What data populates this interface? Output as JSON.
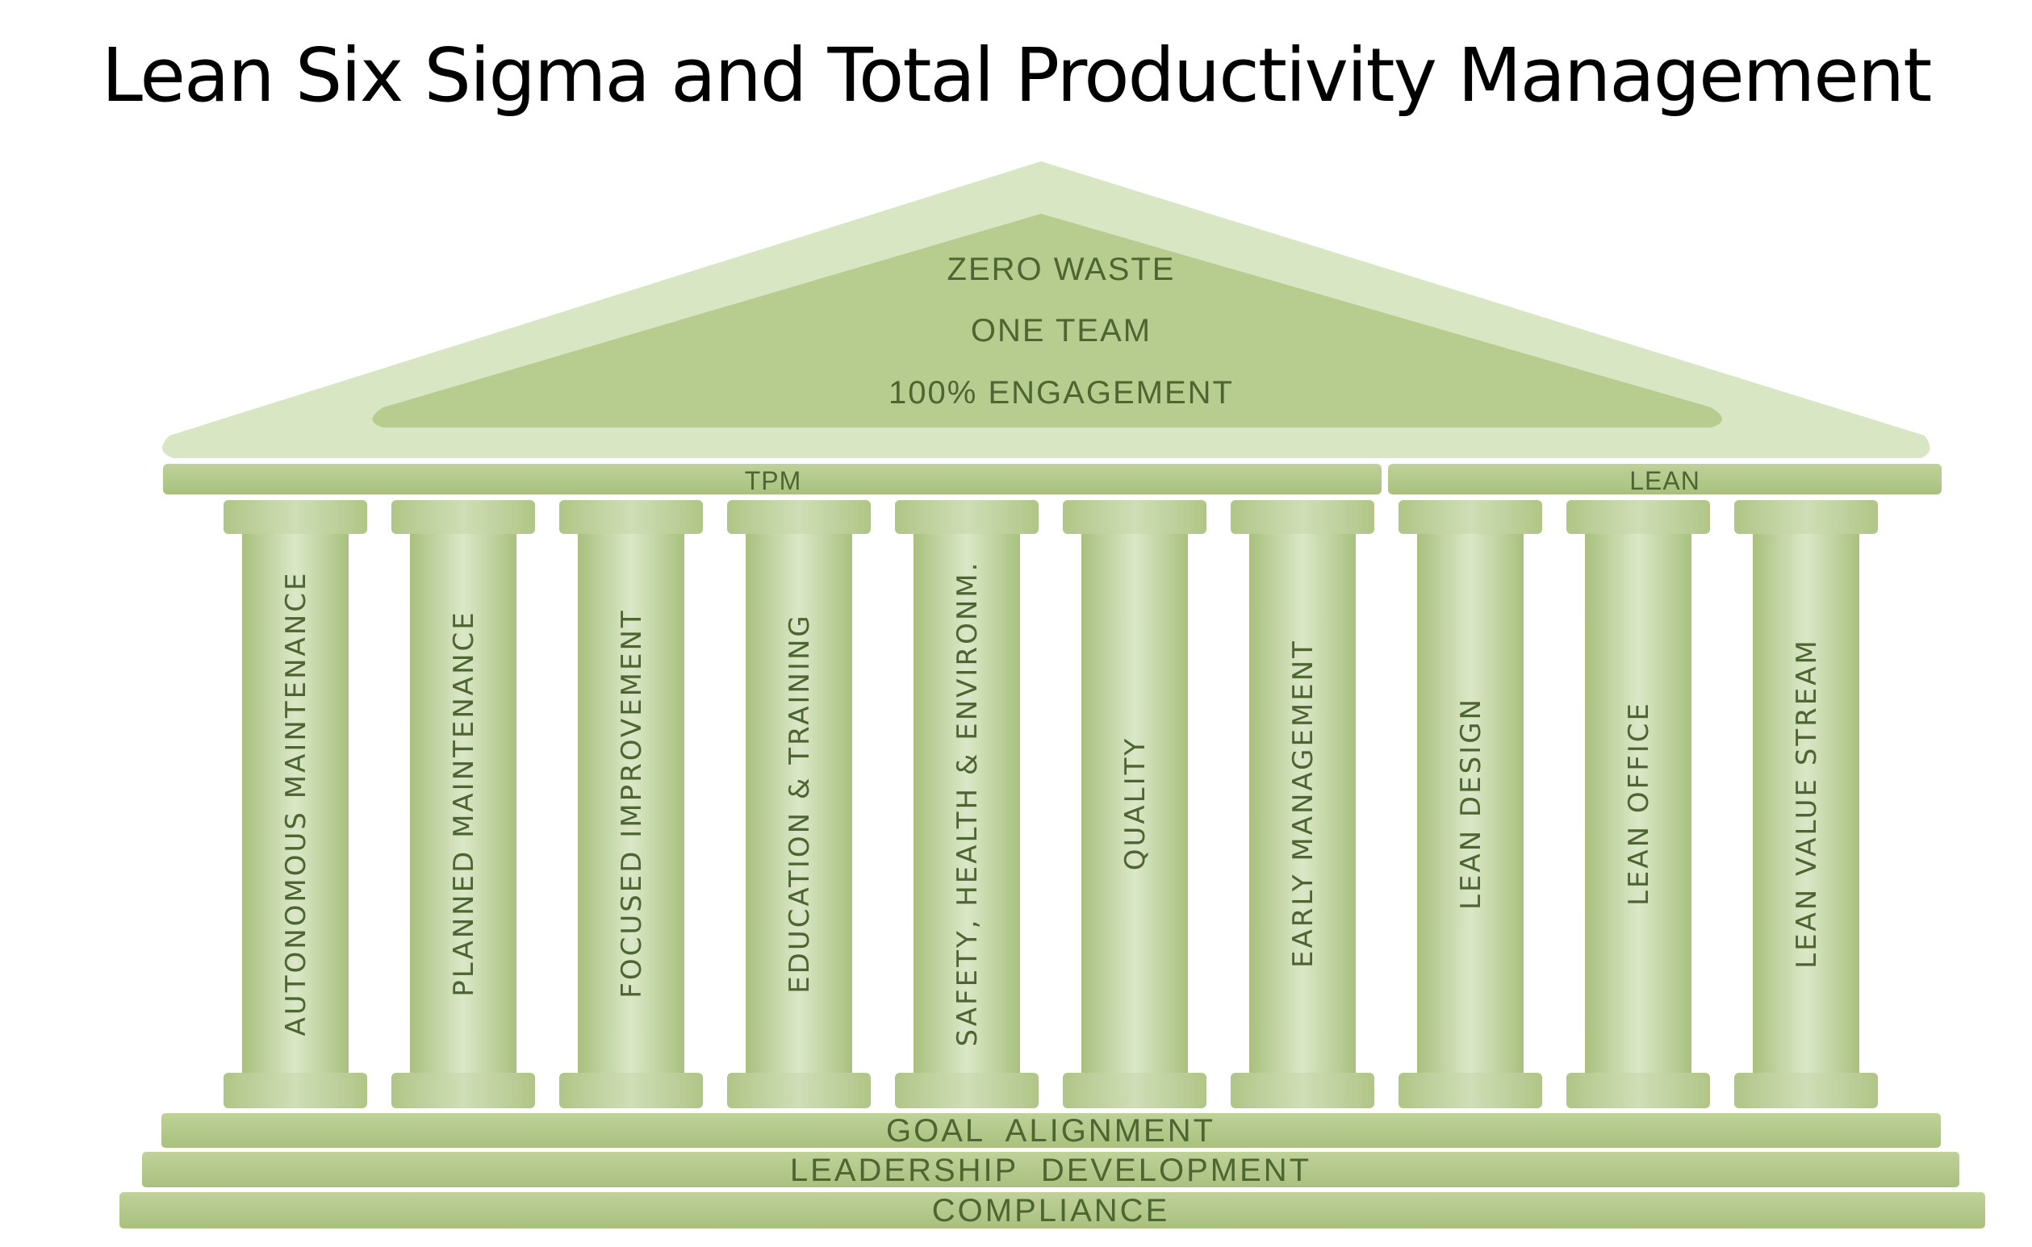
{
  "title": "Lean Six Sigma and Total Productivity Management",
  "roof": {
    "lines": [
      "ZERO WASTE",
      "ONE TEAM",
      "100% ENGAGEMENT"
    ]
  },
  "beams": {
    "left": "TPM",
    "right": "LEAN"
  },
  "pillars": [
    "AUTONOMOUS MAINTENANCE",
    "PLANNED MAINTENANCE",
    "FOCUSED IMPROVEMENT",
    "EDUCATION & TRAINING",
    "SAFETY, HEALTH & ENVIRONM.",
    "QUALITY",
    "EARLY MANAGEMENT",
    "LEAN DESIGN",
    "LEAN OFFICE",
    "LEAN VALUE STREAM"
  ],
  "foundation": [
    "GOAL  ALIGNMENT",
    "LEADERSHIP  DEVELOPMENT",
    "COMPLIANCE"
  ],
  "colors": {
    "roof_outer": "#d8e6c4",
    "roof_inner": "#b7cc8f",
    "beam": "#b3c98a",
    "pillar_light": "#d9e6c6",
    "pillar_dark": "#a9c07e",
    "text": "#4d6530"
  }
}
